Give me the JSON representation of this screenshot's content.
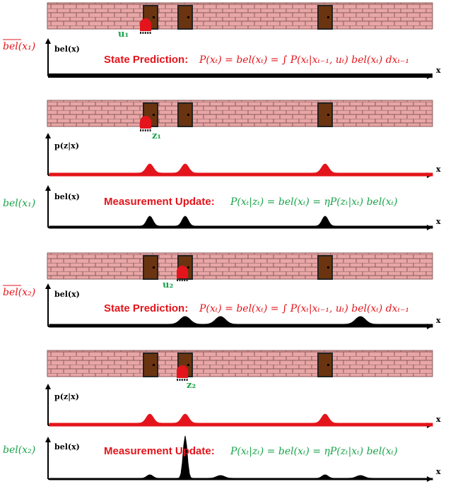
{
  "labels": {
    "bel_bar_x1": "bel(x₁)",
    "bel_x1": "bel(x₁)",
    "bel_bar_x2": "bel(x₂)",
    "bel_x2": "bel(x₂)",
    "axis_bel": "bel(x)",
    "axis_pz": "p(z|x)",
    "axis_x": "x",
    "u1": "u₁",
    "z1": "z₁",
    "u2": "u₂",
    "z2": "z₂"
  },
  "equations": {
    "prediction_title": "State Prediction:",
    "prediction_formula": "P(xₜ) = bel(xₜ) = ∫ P(xₜ|xₜ₋₁, uₜ) bel(xₜ) dxₜ₋₁",
    "update_title": "Measurement Update:",
    "update_formula": "P(xₜ|zₜ) = bel(xₜ) = ηP(zₜ|xₜ) bel(xₜ)"
  },
  "colors": {
    "brick": "#e8a6a6",
    "mortar": "#8a5a5a",
    "door": "#6b3410",
    "robot": "#e3141b",
    "red_text": "#e3141b",
    "green_text": "#1aa34a",
    "purple_text": "#8b3fd1",
    "belief": "#000000",
    "measurement": "#e3141b"
  }
}
